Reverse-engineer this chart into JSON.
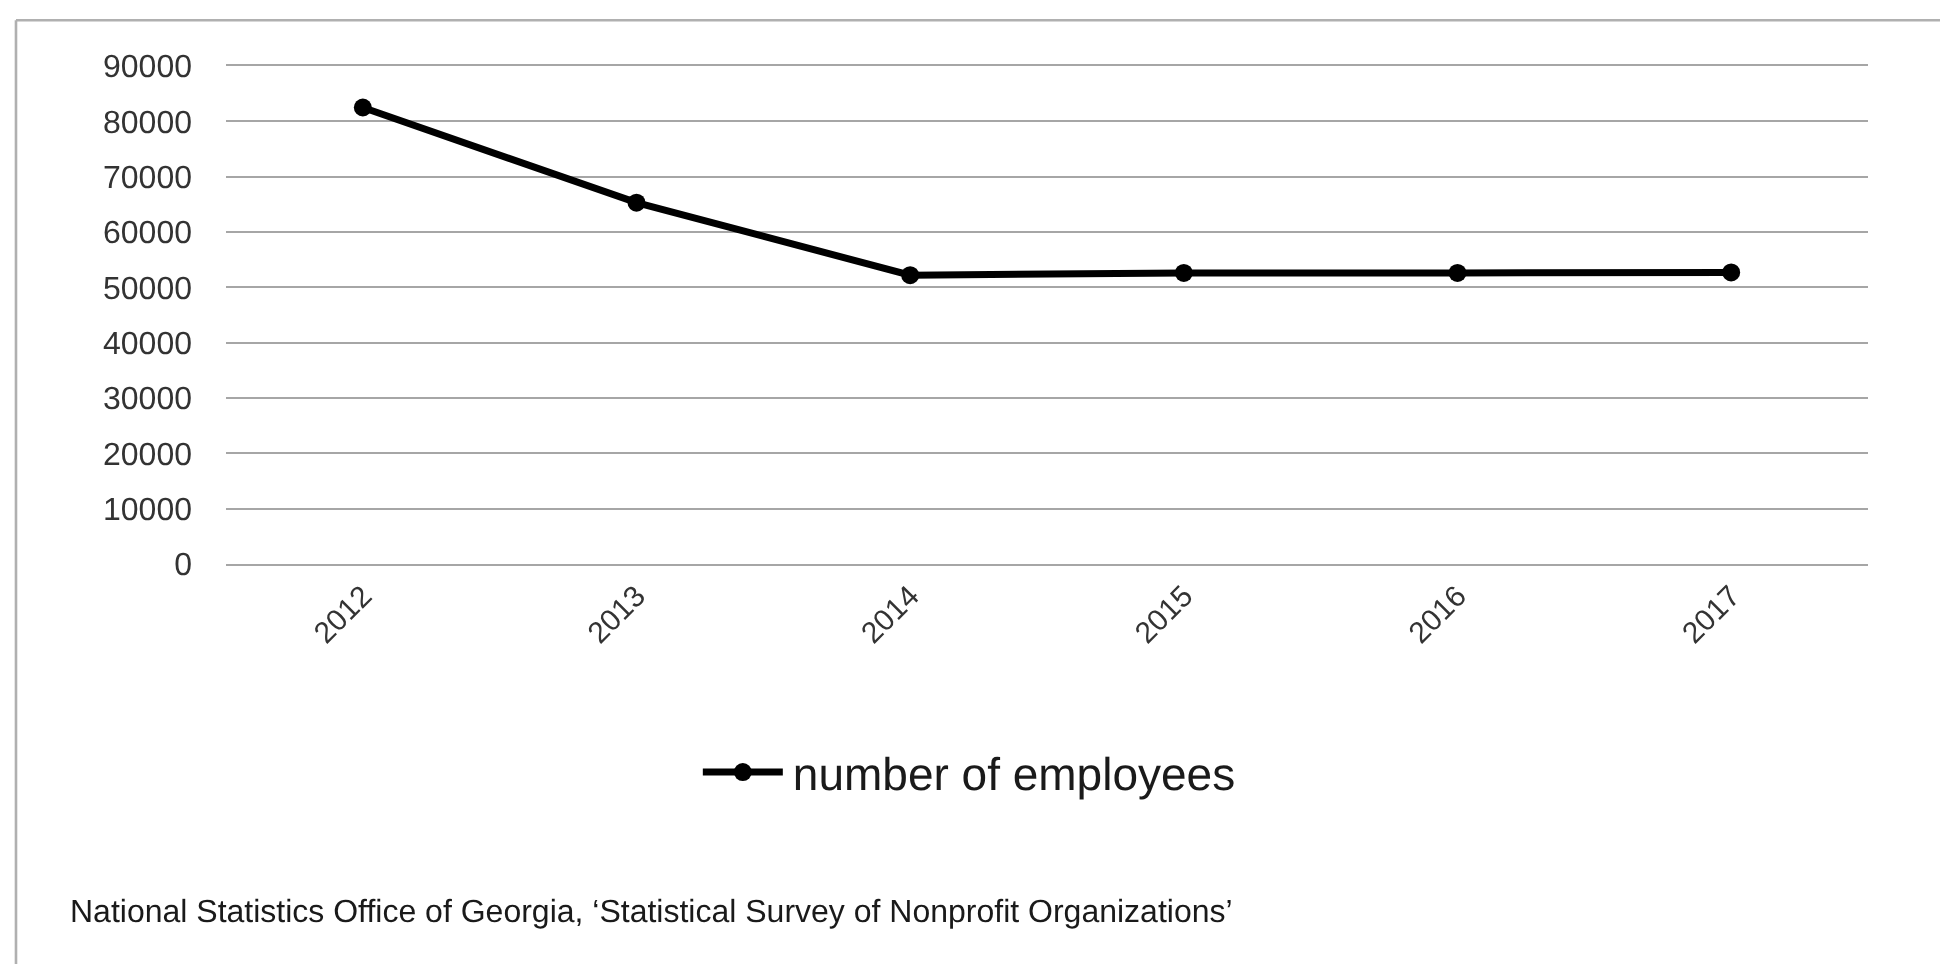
{
  "chart_data": {
    "type": "line",
    "categories": [
      "2012",
      "2013",
      "2014",
      "2015",
      "2016",
      "2017"
    ],
    "series": [
      {
        "name": "number of employees",
        "color": "#000000",
        "values": [
          82500,
          65300,
          52200,
          52600,
          52600,
          52700
        ]
      }
    ],
    "ylim": [
      0,
      90000
    ],
    "yticks": [
      0,
      10000,
      20000,
      30000,
      40000,
      50000,
      60000,
      70000,
      80000,
      90000
    ],
    "grid": "y",
    "legend": "bottom",
    "marker": "circle",
    "line_style": "solid",
    "annotations": [
      "National Statistics Office of Georgia, ‘Statistical Survey of Nonprofit Organizations’"
    ]
  }
}
